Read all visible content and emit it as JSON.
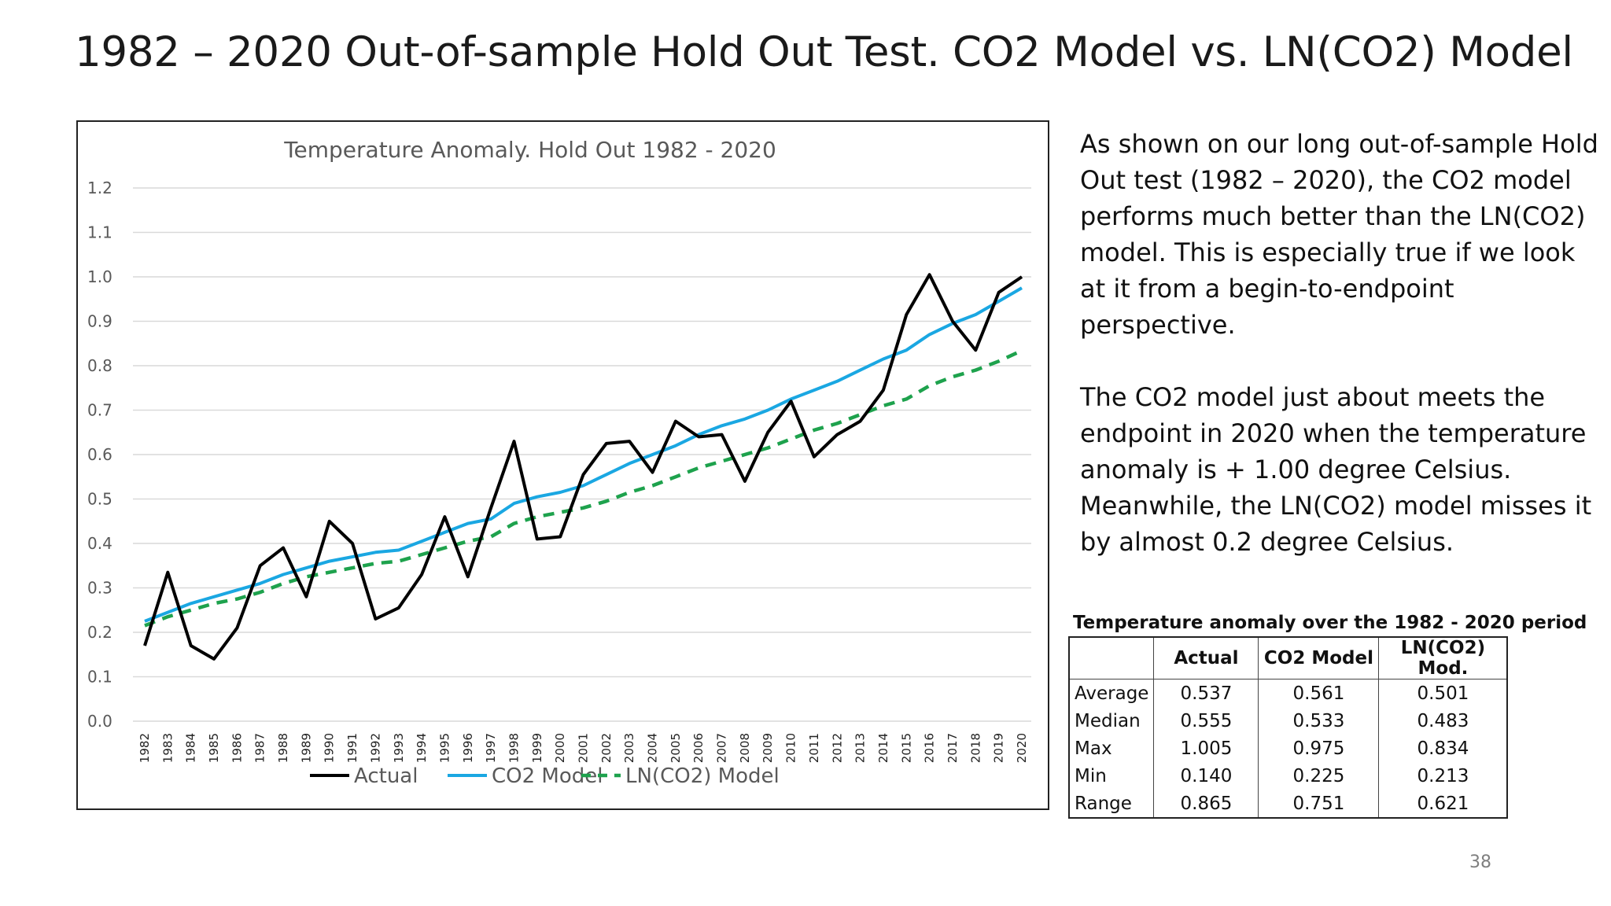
{
  "slide": {
    "title": "1982 – 2020 Out-of-sample Hold Out Test.  CO2 Model vs. LN(CO2) Model",
    "page_number": "38"
  },
  "text": {
    "paragraph_1": "As shown on our long out-of-sample Hold Out test (1982 – 2020), the CO2 model performs much better than the LN(CO2) model. This is especially true if we look at it from a begin-to-endpoint perspective.",
    "paragraph_2": "The CO2 model just about meets the endpoint in 2020 when the temperature anomaly is + 1.00 degree Celsius. Meanwhile, the LN(CO2) model misses it by almost 0.2 degree Celsius."
  },
  "stats_table": {
    "title": "Temperature anomaly over the 1982 - 2020 period",
    "headers": [
      "Actual",
      "CO2 Model",
      "LN(CO2) Mod."
    ],
    "rows": [
      {
        "label": "Average",
        "values": [
          "0.537",
          "0.561",
          "0.501"
        ]
      },
      {
        "label": "Median",
        "values": [
          "0.555",
          "0.533",
          "0.483"
        ]
      },
      {
        "label": "Max",
        "values": [
          "1.005",
          "0.975",
          "0.834"
        ]
      },
      {
        "label": "Min",
        "values": [
          "0.140",
          "0.225",
          "0.213"
        ]
      },
      {
        "label": "Range",
        "values": [
          "0.865",
          "0.751",
          "0.621"
        ]
      }
    ]
  },
  "chart_data": {
    "type": "line",
    "title": "Temperature Anomaly.  Hold Out 1982 - 2020",
    "xlabel": "",
    "ylabel": "",
    "ylim": [
      0.0,
      1.2
    ],
    "ytick_labels": [
      "0.0",
      "0.1",
      "0.2",
      "0.3",
      "0.4",
      "0.5",
      "0.6",
      "0.7",
      "0.8",
      "0.9",
      "1.0",
      "1.1",
      "1.2"
    ],
    "grid": "horizontal",
    "legend_position": "bottom",
    "x": [
      "1982",
      "1983",
      "1984",
      "1985",
      "1986",
      "1987",
      "1988",
      "1989",
      "1990",
      "1991",
      "1992",
      "1993",
      "1994",
      "1995",
      "1996",
      "1997",
      "1998",
      "1999",
      "2000",
      "2001",
      "2002",
      "2003",
      "2004",
      "2005",
      "2006",
      "2007",
      "2008",
      "2009",
      "2010",
      "2011",
      "2012",
      "2013",
      "2014",
      "2015",
      "2016",
      "2017",
      "2018",
      "2019",
      "2020"
    ],
    "series": [
      {
        "name": "Actual",
        "color": "#000000",
        "style": "solid",
        "values": [
          0.17,
          0.335,
          0.17,
          0.14,
          0.21,
          0.35,
          0.39,
          0.28,
          0.45,
          0.4,
          0.23,
          0.255,
          0.33,
          0.46,
          0.325,
          0.48,
          0.63,
          0.41,
          0.415,
          0.555,
          0.625,
          0.63,
          0.56,
          0.675,
          0.64,
          0.645,
          0.54,
          0.65,
          0.72,
          0.595,
          0.645,
          0.675,
          0.745,
          0.915,
          1.005,
          0.9,
          0.835,
          0.965,
          1.0
        ]
      },
      {
        "name": "CO2 Model",
        "color": "#1aa7e2",
        "style": "solid",
        "values": [
          0.225,
          0.245,
          0.265,
          0.28,
          0.295,
          0.31,
          0.33,
          0.345,
          0.36,
          0.37,
          0.38,
          0.385,
          0.405,
          0.425,
          0.445,
          0.455,
          0.49,
          0.505,
          0.515,
          0.53,
          0.555,
          0.58,
          0.6,
          0.62,
          0.645,
          0.665,
          0.68,
          0.7,
          0.725,
          0.745,
          0.765,
          0.79,
          0.815,
          0.835,
          0.87,
          0.895,
          0.915,
          0.945,
          0.975
        ]
      },
      {
        "name": "LN(CO2) Model",
        "color": "#1ea24d",
        "style": "dashed",
        "values": [
          0.215,
          0.235,
          0.25,
          0.265,
          0.275,
          0.29,
          0.31,
          0.325,
          0.335,
          0.345,
          0.355,
          0.36,
          0.375,
          0.39,
          0.405,
          0.415,
          0.445,
          0.46,
          0.47,
          0.48,
          0.495,
          0.515,
          0.53,
          0.55,
          0.57,
          0.585,
          0.6,
          0.615,
          0.635,
          0.655,
          0.67,
          0.69,
          0.71,
          0.725,
          0.755,
          0.775,
          0.79,
          0.81,
          0.834
        ]
      }
    ]
  }
}
